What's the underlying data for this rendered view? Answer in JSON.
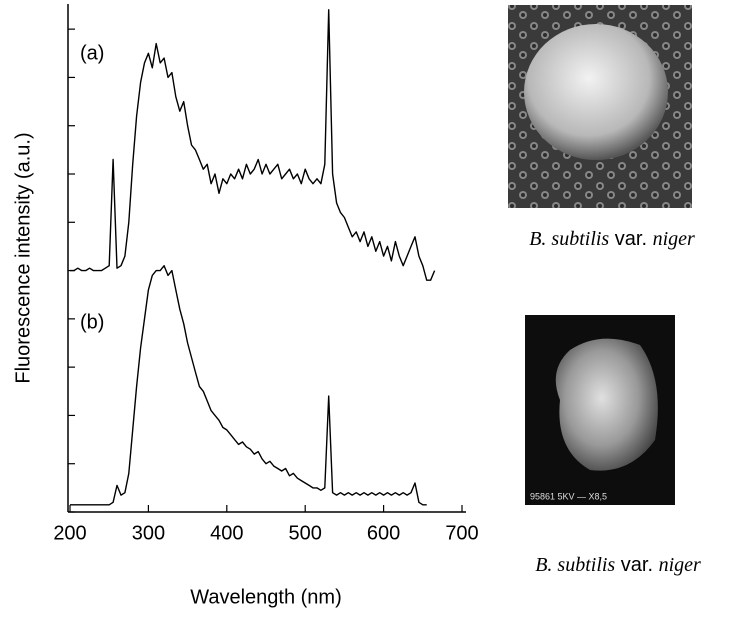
{
  "chart_data": {
    "type": "line",
    "x_label": "Wavelength (nm)",
    "y_label": "Fluorescence intensity (a.u.)",
    "xlim": [
      200,
      700
    ],
    "xticks": [
      200,
      300,
      400,
      500,
      600,
      700
    ],
    "ylim": [
      0,
      10.5
    ],
    "yticks": [
      0,
      1,
      2,
      3,
      4,
      5,
      6,
      7,
      8,
      9,
      10
    ],
    "x": [
      200,
      205,
      210,
      215,
      220,
      225,
      230,
      235,
      240,
      245,
      250,
      255,
      260,
      265,
      270,
      275,
      280,
      285,
      290,
      295,
      300,
      305,
      310,
      315,
      320,
      325,
      330,
      335,
      340,
      345,
      350,
      355,
      360,
      365,
      370,
      375,
      380,
      385,
      390,
      395,
      400,
      405,
      410,
      415,
      420,
      425,
      430,
      435,
      440,
      445,
      450,
      455,
      460,
      465,
      470,
      475,
      480,
      485,
      490,
      495,
      500,
      505,
      510,
      515,
      520,
      525,
      530,
      535,
      540,
      545,
      550,
      555,
      560,
      565,
      570,
      575,
      580,
      585,
      590,
      595,
      600,
      605,
      610,
      615,
      620,
      625,
      630,
      635,
      640,
      645,
      650,
      655,
      660,
      665
    ],
    "series": [
      {
        "name": "(a)",
        "color": "#000000",
        "values": [
          5.0,
          5.0,
          5.05,
          5.0,
          5.0,
          5.05,
          5.0,
          5.0,
          5.0,
          5.05,
          5.1,
          7.3,
          5.05,
          5.1,
          5.3,
          6.0,
          7.2,
          8.2,
          8.9,
          9.3,
          9.5,
          9.2,
          9.7,
          9.3,
          9.4,
          9.0,
          9.1,
          8.6,
          8.3,
          8.5,
          8.0,
          7.6,
          7.5,
          7.3,
          7.1,
          7.2,
          6.8,
          7.0,
          6.6,
          6.9,
          6.8,
          7.0,
          6.9,
          7.1,
          6.9,
          7.2,
          7.0,
          7.1,
          7.3,
          7.0,
          7.2,
          7.0,
          7.1,
          7.2,
          6.9,
          7.0,
          7.1,
          6.9,
          7.0,
          6.8,
          7.1,
          6.9,
          6.8,
          6.9,
          6.8,
          7.2,
          10.4,
          7.0,
          6.4,
          6.2,
          6.1,
          5.9,
          5.7,
          5.8,
          5.6,
          5.8,
          5.5,
          5.7,
          5.4,
          5.6,
          5.3,
          5.5,
          5.2,
          5.6,
          5.3,
          5.1,
          5.3,
          5.5,
          5.7,
          5.3,
          5.1,
          4.8,
          4.8,
          5.0
        ]
      },
      {
        "name": "(b)",
        "color": "#000000",
        "values": [
          0.15,
          0.15,
          0.15,
          0.15,
          0.15,
          0.15,
          0.15,
          0.15,
          0.15,
          0.15,
          0.15,
          0.2,
          0.55,
          0.35,
          0.4,
          0.8,
          1.7,
          2.6,
          3.4,
          4.0,
          4.6,
          4.9,
          5.0,
          5.0,
          5.1,
          4.9,
          5.0,
          4.6,
          4.2,
          3.9,
          3.5,
          3.2,
          2.9,
          2.6,
          2.5,
          2.3,
          2.1,
          2.0,
          1.9,
          1.75,
          1.7,
          1.6,
          1.5,
          1.4,
          1.45,
          1.35,
          1.3,
          1.2,
          1.25,
          1.1,
          1.0,
          1.05,
          0.95,
          0.9,
          0.85,
          0.9,
          0.75,
          0.8,
          0.7,
          0.65,
          0.6,
          0.55,
          0.5,
          0.5,
          0.45,
          0.5,
          2.4,
          0.4,
          0.35,
          0.4,
          0.35,
          0.4,
          0.35,
          0.4,
          0.35,
          0.4,
          0.35,
          0.4,
          0.35,
          0.4,
          0.35,
          0.4,
          0.35,
          0.4,
          0.35,
          0.4,
          0.35,
          0.4,
          0.6,
          0.2,
          0.15,
          0.15,
          null,
          null
        ]
      }
    ]
  },
  "images": [
    {
      "caption": [
        "B. subtilis",
        " var. ",
        "niger"
      ]
    },
    {
      "caption": [
        "B. subtilis",
        " var. ",
        "niger"
      ]
    }
  ]
}
